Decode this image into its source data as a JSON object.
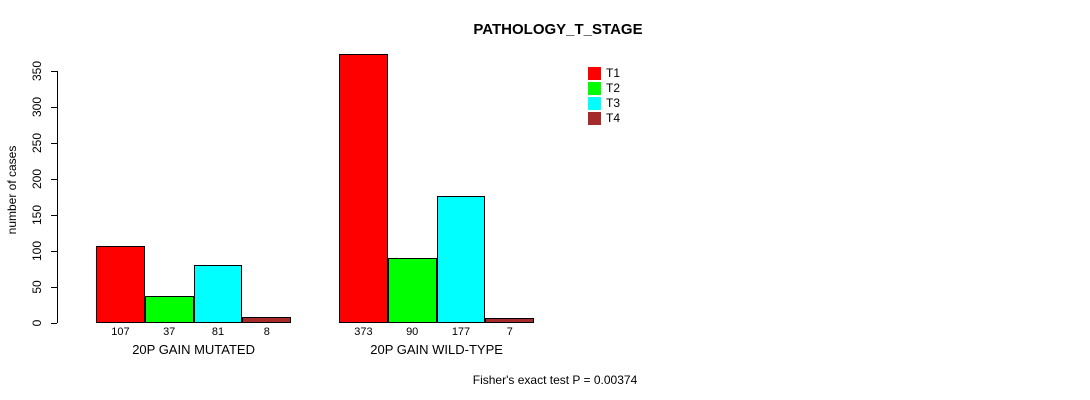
{
  "chart_data": {
    "type": "bar",
    "title": "PATHOLOGY_T_STAGE",
    "xlabel": "",
    "ylabel": "number of cases",
    "ylim": [
      0,
      350
    ],
    "yticks": [
      0,
      50,
      100,
      150,
      200,
      250,
      300,
      350
    ],
    "grid": false,
    "legend_position": "top-right",
    "categories": [
      "20P GAIN MUTATED",
      "20P GAIN WILD-TYPE"
    ],
    "series": [
      {
        "name": "T1",
        "color": "#FF0000",
        "values": [
          107,
          373
        ]
      },
      {
        "name": "T2",
        "color": "#00FF00",
        "values": [
          37,
          90
        ]
      },
      {
        "name": "T3",
        "color": "#00FFFF",
        "values": [
          81,
          177
        ]
      },
      {
        "name": "T4",
        "color": "#A52A2A",
        "values": [
          8,
          7
        ]
      }
    ],
    "bar_value_labels_shown": true,
    "annotation": "Fisher's exact test P = 0.00374"
  }
}
